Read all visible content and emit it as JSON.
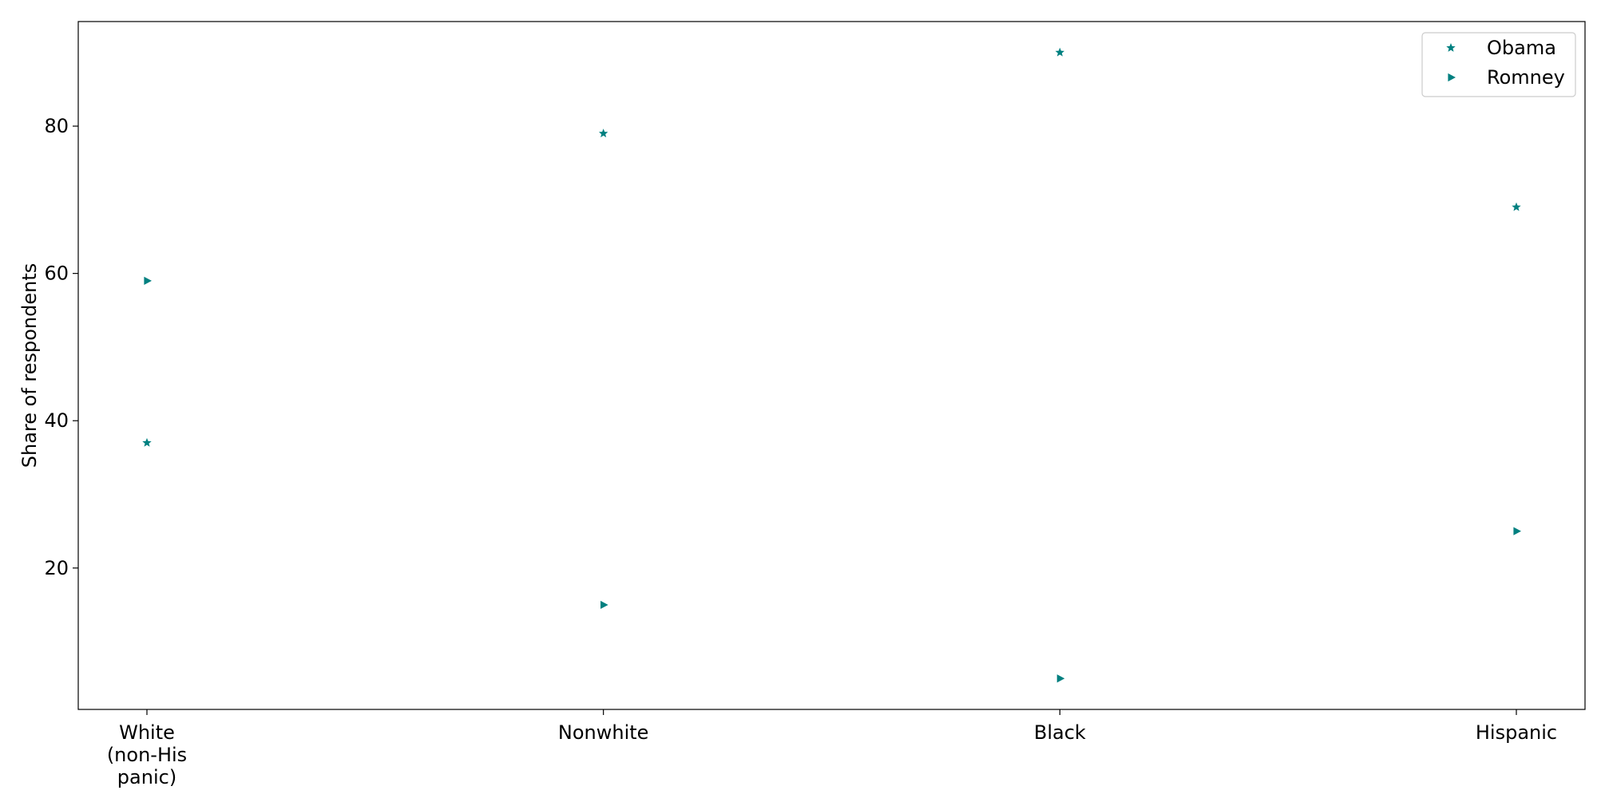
{
  "chart_data": {
    "type": "scatter",
    "title": "",
    "xlabel": "",
    "ylabel": "Share of respondents",
    "categories": [
      "White\n(non-His\npanic)",
      "Nonwhite",
      "Black",
      "Hispanic"
    ],
    "series": [
      {
        "name": "Obama",
        "marker": "star",
        "color": "#008080",
        "values": [
          37,
          79,
          90,
          69
        ]
      },
      {
        "name": "Romney",
        "marker": "triangle-right",
        "color": "#008080",
        "values": [
          59,
          15,
          5,
          25
        ]
      }
    ],
    "yticks": [
      20,
      40,
      60,
      80
    ],
    "ylim": [
      0.8,
      94.2
    ],
    "grid": false,
    "legend_position": "top-right"
  }
}
